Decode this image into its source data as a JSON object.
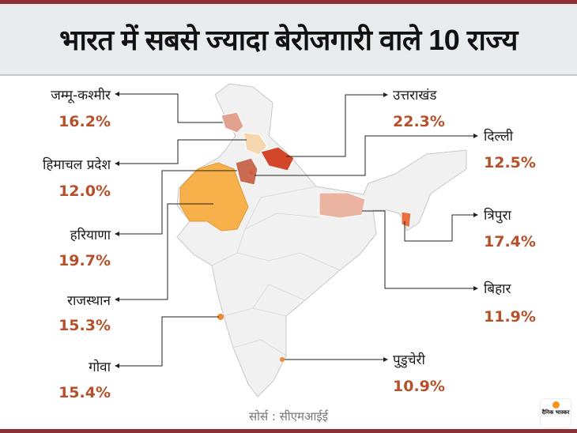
{
  "title": "भारत में सबसे ज्यादा बेरोजगारी वाले 10 राज्य",
  "states": [
    {
      "name": "जम्मू-कश्मीर",
      "value": "16.2%",
      "rate": 16.2,
      "color": "#e2a08e"
    },
    {
      "name": "हिमाचल प्रदेश",
      "value": "12.0%",
      "rate": 12.0,
      "color": "#f6d6ae"
    },
    {
      "name": "हरियाणा",
      "value": "19.7%",
      "rate": 19.7,
      "color": "#c96a52"
    },
    {
      "name": "राजस्थान",
      "value": "15.3%",
      "rate": 15.3,
      "color": "#f8b04a"
    },
    {
      "name": "गोवा",
      "value": "15.4%",
      "rate": 15.4,
      "color": "#f08a30"
    },
    {
      "name": "उत्तराखंड",
      "value": "22.3%",
      "rate": 22.3,
      "color": "#d4462a"
    },
    {
      "name": "दिल्ली",
      "value": "12.5%",
      "rate": 12.5,
      "color": "#d65a3a"
    },
    {
      "name": "त्रिपुरा",
      "value": "17.4%",
      "rate": 17.4,
      "color": "#e8703e"
    },
    {
      "name": "बिहार",
      "value": "11.9%",
      "rate": 11.9,
      "color": "#ebb3a2"
    },
    {
      "name": "पुडुचेरी",
      "value": "10.9%",
      "rate": 10.9,
      "color": "#f08a30"
    }
  ],
  "source": "सोर्स : सीएमआईई",
  "logo": "दैनिक भास्कर",
  "colors": {
    "accent_bar": "#8b2f35",
    "percent_text": "#b5502a",
    "map_base": "#f1f1f1"
  }
}
